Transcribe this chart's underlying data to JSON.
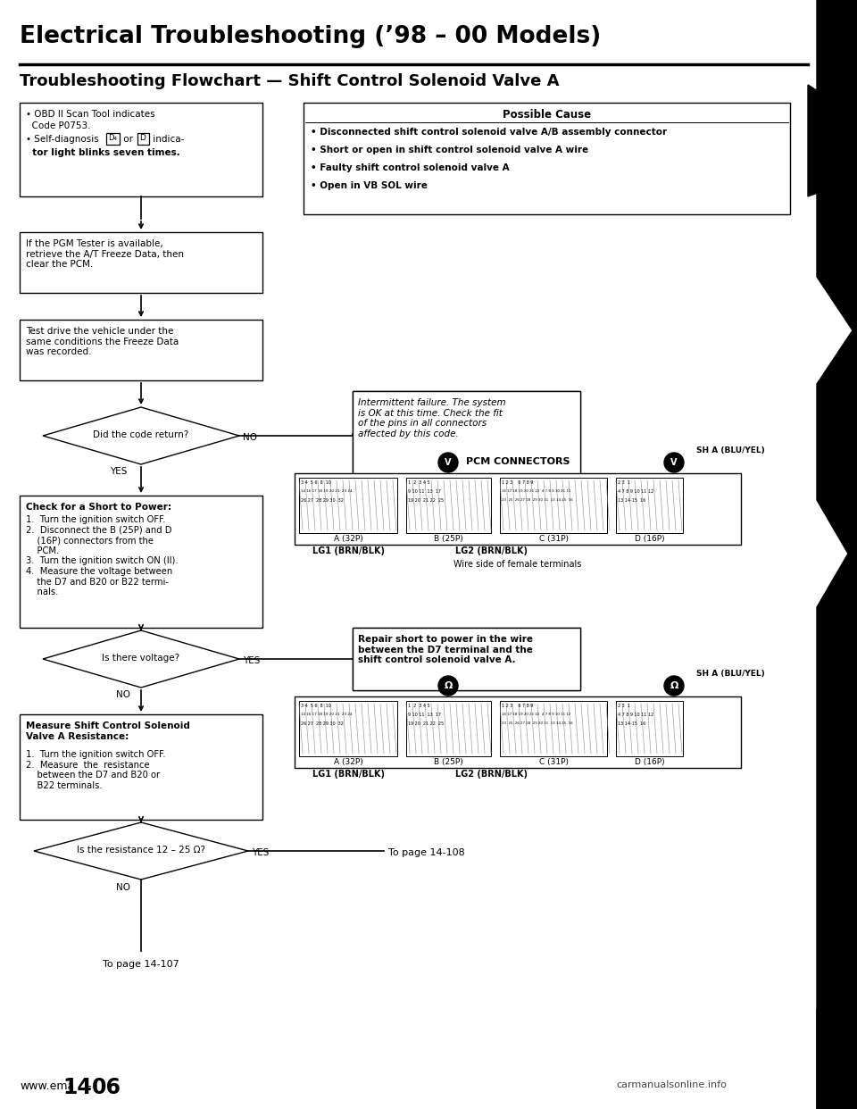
{
  "title": "Electrical Troubleshooting (’98 – 00 Models)",
  "subtitle": "Troubleshooting Flowchart — Shift Control Solenoid Valve A",
  "possible_cause_title": "Possible Cause",
  "possible_cause_items": [
    "• Disconnected shift control solenoid valve A/B assembly connector",
    "• Short or open in shift control solenoid valve A wire",
    "• Faulty shift control solenoid valve A",
    "• Open in VB SOL wire"
  ],
  "box1_line1": "• OBD II Scan Tool indicates",
  "box1_line2": "  Code P0753.",
  "box1_line3": "• Self-diagnosis ",
  "box1_line3b": " or ",
  "box1_line4": "  tor light blinks seven times.",
  "box2_text": "If the PGM Tester is available,\nretrieve the A/T Freeze Data, then\nclear the PCM.",
  "box3_text": "Test drive the vehicle under the\nsame conditions the Freeze Data\nwas recorded.",
  "diamond1_text": "Did the code return?",
  "box4_text": "Intermittent failure. The system\nis OK at this time. Check the fit\nof the pins in all connectors\naffected by this code.",
  "box5_title": "Check for a Short to Power:",
  "box5_body": "1.  Turn the ignition switch OFF.\n2.  Disconnect the B (25P) and D\n    (16P) connectors from the\n    PCM.\n3.  Turn the ignition switch ON (II).\n4.  Measure the voltage between\n    the D7 and B20 or B22 termi-\n    nals.",
  "pcm_label": "PCM CONNECTORS",
  "sha_label": "SH A (BLU/YEL)",
  "lg1_label": "LG1 (BRN/BLK)",
  "lg2_label": "LG2 (BRN/BLK)",
  "wire_label": "Wire side of female terminals",
  "diamond2_text": "Is there voltage?",
  "box6_text": "Repair short to power in the wire\nbetween the D7 terminal and the\nshift control solenoid valve A.",
  "box7_title": "Measure Shift Control Solenoid\nValve A Resistance:",
  "box7_body": "1.  Turn the ignition switch OFF.\n2.  Measure  the  resistance\n    between the D7 and B20 or\n    B22 terminals.",
  "diamond3_text": "Is the resistance 12 – 25 Ω?",
  "page108_text": "To page 14-108",
  "page107_text": "To page 14-107",
  "footer_web": "www.ema",
  "footer_num": "14",
  "footer_dash": "-",
  "footer_num2": "06",
  "footer_right": "carmanualsonline.info"
}
